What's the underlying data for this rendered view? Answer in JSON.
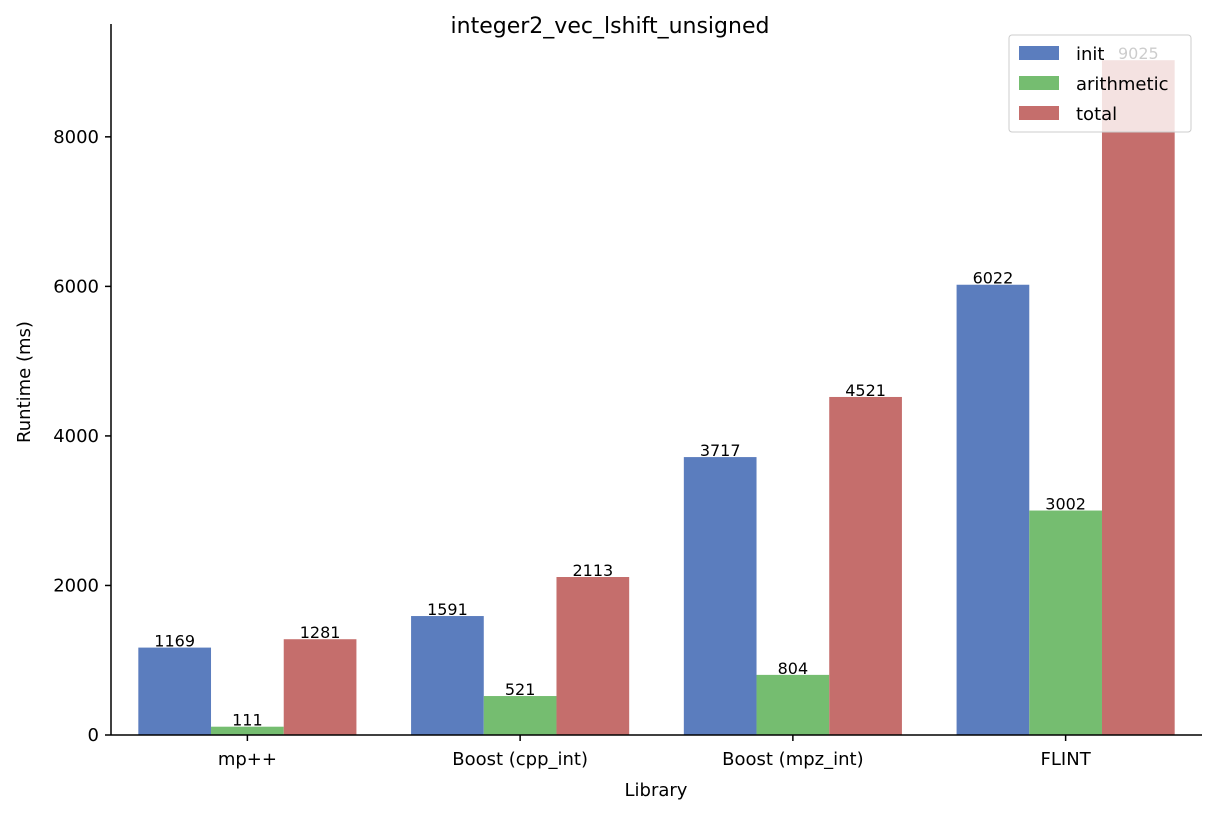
{
  "chart_data": {
    "type": "bar",
    "title": "integer2_vec_lshift_unsigned",
    "xlabel": "Library",
    "ylabel": "Runtime (ms)",
    "categories": [
      "mp++",
      "Boost (cpp_int)",
      "Boost (mpz_int)",
      "FLINT"
    ],
    "series": [
      {
        "name": "init",
        "color": "#5b7dbe",
        "values": [
          1169,
          1591,
          3717,
          6022
        ]
      },
      {
        "name": "arithmetic",
        "color": "#75bd70",
        "values": [
          111,
          521,
          804,
          3002
        ]
      },
      {
        "name": "total",
        "color": "#c56e6c",
        "values": [
          1281,
          2113,
          4521,
          9025
        ]
      }
    ],
    "yticks": [
      0,
      2000,
      4000,
      6000,
      8000
    ],
    "ylim": [
      0,
      9400
    ],
    "grid": false,
    "legend_position": "top-right"
  }
}
